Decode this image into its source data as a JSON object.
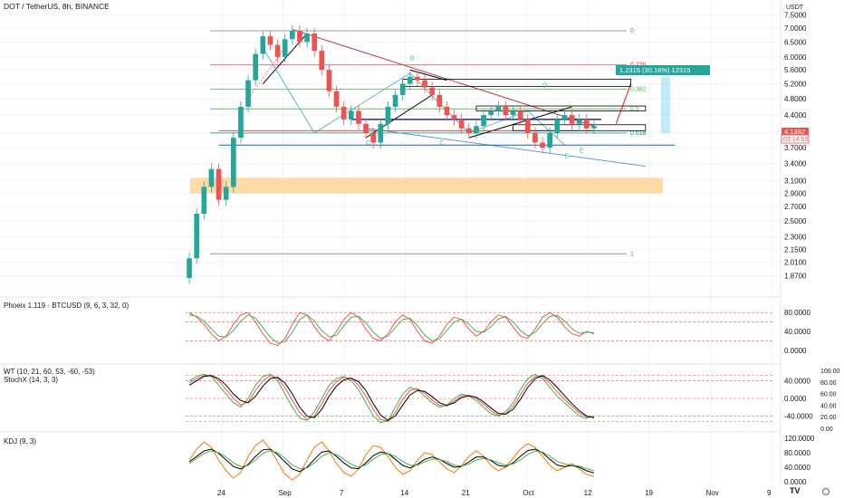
{
  "chart_data": [
    {
      "panel": "price",
      "type": "candlestick",
      "title": "DOT / TetherUS, 8h, BINANCE",
      "currency_label": "USDT",
      "y_scale": "log",
      "ylim": [
        1.75,
        7.6
      ],
      "y_ticks": [
        "7.5000",
        "7.0000",
        "6.5000",
        "6.0000",
        "5.6000",
        "5.2000",
        "4.8000",
        "4.4000",
        "4.0000",
        "3.7000",
        "3.4000",
        "3.1000",
        "2.9000",
        "2.7000",
        "2.5000",
        "2.3000",
        "2.1500",
        "2.0100",
        "1.8700"
      ],
      "x_ticks": [
        "24",
        "Sep",
        "7",
        "14",
        "21",
        "Oct",
        "12",
        "19",
        "Nov",
        "9"
      ],
      "last_price": "4.1382",
      "countdown": "03:14:53",
      "fib_levels": [
        {
          "label": "0",
          "value": 6.9,
          "color": "#787b86"
        },
        {
          "label": "0.236",
          "value": 5.75,
          "color": "#f23645"
        },
        {
          "label": "0.382",
          "value": 5.05,
          "color": "#4caf50"
        },
        {
          "label": "0.5",
          "value": 4.55,
          "color": "#4caf50"
        },
        {
          "label": "0.618",
          "value": 4.0,
          "color": "#009688"
        },
        {
          "label": "1",
          "value": 2.1,
          "color": "#787b86"
        }
      ],
      "wave_labels": [
        "B",
        "D",
        "C",
        "E",
        "C",
        "E"
      ],
      "measure_label": "1.2315 (30.16%) 12315",
      "measure_color": "#26a69a",
      "support_zone": [
        2.9,
        3.15
      ],
      "close": [
        2.05,
        2.6,
        3.0,
        3.3,
        2.8,
        3.0,
        3.9,
        4.6,
        5.3,
        6.1,
        6.7,
        6.4,
        6.0,
        6.6,
        6.9,
        6.5,
        6.8,
        6.2,
        5.6,
        5.0,
        4.6,
        4.3,
        4.5,
        4.2,
        4.0,
        3.8,
        4.2,
        4.6,
        4.9,
        5.2,
        5.4,
        5.3,
        5.1,
        4.9,
        4.6,
        4.4,
        4.3,
        4.1,
        4.0,
        4.15,
        4.4,
        4.5,
        4.6,
        4.4,
        4.5,
        4.3,
        4.0,
        3.8,
        3.7,
        4.0,
        4.3,
        4.4,
        4.2,
        4.3,
        4.1,
        4.15
      ],
      "up_color": "#26a69a",
      "down_color": "#ef5350"
    },
    {
      "panel": "phoeix",
      "type": "line",
      "title": "Phoeix 1.119 · BTCUSD (9, 6, 3, 32, 0)",
      "y_ticks": [
        "80.0000",
        "40.0000",
        "0.0000"
      ],
      "series": [
        {
          "values": [
            80,
            70,
            55,
            35,
            20,
            30,
            55,
            75,
            80,
            60,
            35,
            15,
            10,
            25,
            55,
            80,
            75,
            50,
            30,
            20,
            40,
            65,
            80,
            70,
            45,
            25,
            20,
            35,
            60,
            75,
            65,
            40,
            20,
            15,
            30,
            55,
            70,
            65,
            45,
            30,
            40,
            60,
            75,
            70,
            50,
            30,
            25,
            45,
            70,
            80,
            70,
            50,
            35,
            30,
            40,
            35
          ]
        },
        {
          "values": [
            75,
            72,
            62,
            45,
            30,
            28,
            42,
            62,
            75,
            68,
            48,
            28,
            15,
            18,
            38,
            65,
            75,
            62,
            42,
            28,
            32,
            52,
            70,
            72,
            58,
            38,
            25,
            30,
            48,
            65,
            68,
            52,
            32,
            20,
            24,
            42,
            60,
            66,
            55,
            40,
            38,
            50,
            66,
            72,
            60,
            42,
            30,
            38,
            56,
            72,
            74,
            62,
            46,
            36,
            38,
            37
          ]
        }
      ],
      "levels": [
        80,
        60,
        20
      ]
    },
    {
      "panel": "wt_stochx",
      "type": "line",
      "title": "WT (10, 21, 60, 53, -60, -53)",
      "subtitle": "StochX (14, 3, 3)",
      "y_ticks_left": [
        "40.0000",
        "0.0000",
        "-40.0000"
      ],
      "y_ticks_right": [
        "100.00",
        "80.00",
        "60.00",
        "40.00",
        "20.00",
        "0.00"
      ],
      "series": [
        {
          "values": [
            40,
            50,
            55,
            50,
            30,
            10,
            -10,
            -20,
            0,
            30,
            50,
            55,
            40,
            10,
            -20,
            -45,
            -50,
            -30,
            0,
            30,
            45,
            50,
            40,
            20,
            -10,
            -40,
            -55,
            -50,
            -20,
            10,
            25,
            20,
            5,
            -10,
            -20,
            -15,
            0,
            10,
            5,
            -5,
            -20,
            -35,
            -40,
            -30,
            -10,
            20,
            45,
            55,
            45,
            25,
            5,
            -10,
            -25,
            -40,
            -45,
            -40
          ]
        },
        {
          "values": [
            35,
            45,
            52,
            52,
            40,
            20,
            0,
            -15,
            -8,
            18,
            40,
            52,
            46,
            25,
            -5,
            -32,
            -48,
            -40,
            -12,
            18,
            38,
            48,
            45,
            30,
            5,
            -25,
            -48,
            -52,
            -32,
            -2,
            18,
            22,
            12,
            -4,
            -16,
            -17,
            -6,
            6,
            7,
            0,
            -13,
            -28,
            -38,
            -35,
            -18,
            8,
            34,
            50,
            50,
            35,
            15,
            -2,
            -18,
            -33,
            -42,
            -42
          ]
        },
        {
          "values": [
            30,
            40,
            50,
            52,
            45,
            30,
            10,
            -5,
            -10,
            5,
            28,
            45,
            48,
            35,
            10,
            -20,
            -40,
            -44,
            -25,
            5,
            28,
            42,
            46,
            38,
            18,
            -12,
            -38,
            -50,
            -40,
            -15,
            8,
            18,
            16,
            4,
            -10,
            -16,
            -10,
            2,
            6,
            3,
            -8,
            -22,
            -34,
            -36,
            -25,
            -2,
            25,
            45,
            52,
            42,
            25,
            6,
            -12,
            -28,
            -40,
            -44
          ]
        }
      ],
      "levels": [
        53,
        40,
        0,
        -40,
        -53
      ]
    },
    {
      "panel": "kdj",
      "type": "line",
      "title": "KDJ (9, 3)",
      "y_ticks": [
        "120.0000",
        "80.0000",
        "40.0000",
        "0.0000"
      ],
      "series": [
        {
          "values": [
            60,
            90,
            110,
            95,
            60,
            30,
            10,
            25,
            70,
            100,
            115,
            90,
            55,
            20,
            5,
            20,
            60,
            95,
            110,
            85,
            50,
            25,
            15,
            35,
            75,
            100,
            95,
            70,
            40,
            20,
            30,
            60,
            80,
            75,
            55,
            35,
            25,
            45,
            70,
            85,
            70,
            45,
            30,
            40,
            65,
            90,
            105,
            95,
            70,
            45,
            30,
            40,
            50,
            35,
            20,
            15
          ]
        },
        {
          "values": [
            55,
            70,
            85,
            90,
            78,
            60,
            42,
            35,
            48,
            70,
            88,
            90,
            75,
            55,
            35,
            28,
            40,
            62,
            82,
            85,
            70,
            52,
            38,
            36,
            52,
            72,
            82,
            78,
            62,
            45,
            38,
            48,
            62,
            68,
            62,
            50,
            40,
            42,
            55,
            68,
            68,
            58,
            45,
            42,
            52,
            70,
            86,
            90,
            80,
            62,
            46,
            42,
            45,
            40,
            30,
            24
          ]
        },
        {
          "values": [
            50,
            65,
            78,
            85,
            80,
            68,
            52,
            42,
            45,
            60,
            78,
            86,
            80,
            65,
            46,
            36,
            38,
            52,
            70,
            80,
            75,
            62,
            48,
            40,
            46,
            62,
            75,
            78,
            70,
            56,
            45,
            46,
            55,
            62,
            62,
            55,
            46,
            43,
            49,
            60,
            64,
            60,
            52,
            46,
            49,
            60,
            75,
            85,
            82,
            70,
            56,
            49,
            46,
            43,
            36,
            30
          ]
        }
      ],
      "y_max": 125
    }
  ],
  "watermark_letters": "TV",
  "colors": {
    "bull": "#26a69a",
    "bear": "#ef5350",
    "gridline": "#f0f3fa",
    "support": "#ffcc80",
    "trend_red": "#b22833",
    "trend_blue": "#2962ff",
    "trend_teal": "#4db6ac",
    "k_line": "#f57c00",
    "d_line": "#000000",
    "j_line": "#4caf50",
    "phoeix_a": "#ef5350",
    "phoeix_b": "#4caf50",
    "wt_a": "#4caf50",
    "wt_b": "#ef5350",
    "wt_c": "#000000"
  }
}
